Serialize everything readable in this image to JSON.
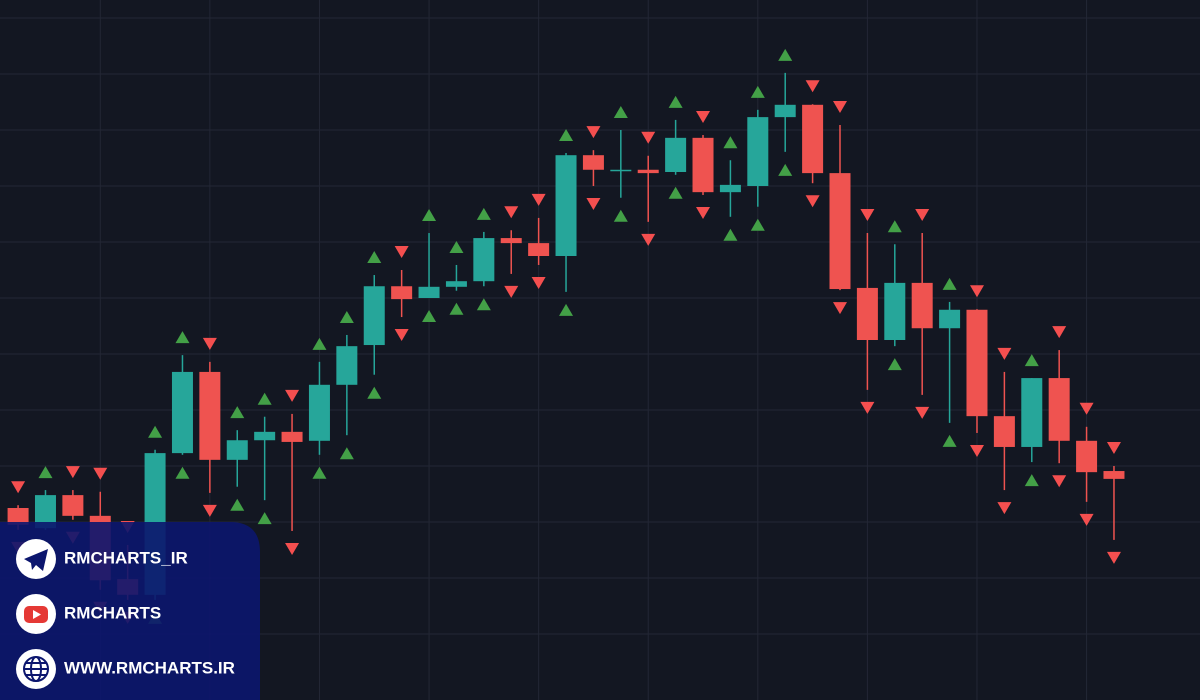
{
  "chart_data": {
    "type": "candlestick",
    "x": [
      1,
      2,
      3,
      4,
      5,
      6,
      7,
      8,
      9,
      10,
      11,
      12,
      13,
      14,
      15,
      16,
      17,
      18,
      19,
      20,
      21,
      22,
      23,
      24,
      25,
      26,
      27,
      28,
      29,
      30,
      31,
      32,
      33,
      34,
      35,
      36,
      37,
      38,
      39,
      40,
      41
    ],
    "open": [
      3.25,
      2.89,
      3.48,
      3.11,
      1.98,
      1.7,
      4.23,
      5.68,
      4.11,
      4.46,
      4.61,
      4.45,
      5.45,
      6.16,
      7.21,
      7.0,
      7.2,
      7.3,
      8.07,
      7.98,
      7.75,
      9.55,
      9.29,
      9.29,
      9.25,
      9.86,
      8.89,
      9.0,
      10.23,
      10.45,
      9.23,
      7.18,
      6.25,
      7.27,
      6.46,
      6.79,
      4.89,
      4.34,
      5.57,
      4.45,
      3.91
    ],
    "high": [
      3.3,
      3.57,
      3.57,
      3.54,
      2.59,
      4.29,
      5.98,
      5.86,
      4.64,
      4.88,
      4.93,
      5.86,
      6.34,
      7.41,
      7.5,
      8.16,
      7.59,
      8.18,
      8.21,
      8.43,
      9.59,
      9.64,
      10.0,
      9.54,
      10.18,
      9.91,
      9.46,
      10.36,
      11.02,
      10.46,
      10.09,
      8.16,
      7.96,
      8.16,
      6.93,
      6.8,
      5.68,
      5.57,
      6.07,
      4.7,
      4.0
    ],
    "low": [
      2.86,
      2.86,
      3.04,
      1.79,
      1.61,
      1.61,
      4.2,
      3.52,
      3.63,
      3.39,
      2.84,
      4.2,
      4.55,
      5.63,
      6.66,
      7.0,
      7.13,
      7.21,
      7.43,
      7.59,
      7.11,
      9.0,
      8.79,
      8.36,
      9.2,
      8.84,
      8.45,
      8.63,
      9.61,
      9.05,
      7.14,
      5.36,
      6.14,
      5.27,
      4.77,
      4.59,
      3.57,
      4.07,
      4.05,
      3.36,
      2.68
    ],
    "close": [
      2.95,
      3.48,
      3.11,
      1.96,
      1.7,
      4.23,
      5.68,
      4.11,
      4.46,
      4.61,
      4.43,
      5.45,
      6.14,
      7.21,
      6.98,
      7.2,
      7.3,
      8.07,
      7.98,
      7.75,
      9.55,
      9.29,
      9.29,
      9.23,
      9.86,
      8.89,
      9.02,
      10.23,
      10.45,
      9.23,
      7.16,
      6.25,
      7.27,
      6.46,
      6.79,
      4.89,
      4.34,
      5.57,
      4.45,
      3.89,
      3.77
    ],
    "up_color": "#26a69a",
    "down_color": "#ef5350",
    "xlim": [
      0.34,
      44.14
    ],
    "xticks": [
      4,
      8,
      12,
      16,
      20,
      24,
      28,
      32,
      36,
      40
    ],
    "ylim": [
      0,
      12.5
    ],
    "yticks": [
      1,
      2,
      3,
      4,
      5,
      6,
      7,
      8,
      9,
      10,
      11,
      12
    ],
    "grid": true
  },
  "contacts": [
    "RMCHARTS_IR",
    "RMCHARTS",
    "WWW.RMCHARTS.IR"
  ]
}
